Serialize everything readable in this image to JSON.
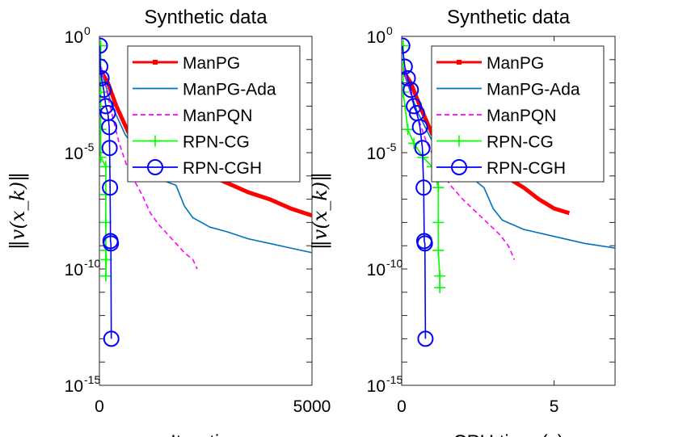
{
  "chart_data": [
    {
      "type": "line",
      "title": "Synthetic data",
      "xlabel": "Iteration",
      "ylabel": "‖v(x_k)‖",
      "xlim": [
        0,
        5000
      ],
      "ylim": [
        1e-15,
        1
      ],
      "yscale": "log",
      "xticks": [
        {
          "v": 0,
          "label": "0"
        },
        {
          "v": 5000,
          "label": "5000"
        }
      ],
      "yticks": [
        {
          "v": 0,
          "base": "10",
          "exp": "0"
        },
        {
          "v": -5,
          "base": "10",
          "exp": "-5"
        },
        {
          "v": -10,
          "base": "10",
          "exp": "-10"
        },
        {
          "v": -15,
          "base": "10",
          "exp": "-15"
        }
      ],
      "legend_position": "top-right",
      "series": [
        {
          "name": "ManPG",
          "color": "#ff0000",
          "style": "thick",
          "marker": "square",
          "points": [
            [
              40,
              -1.5
            ],
            [
              200,
              -2.0
            ],
            [
              400,
              -3.0
            ],
            [
              700,
              -4.2
            ],
            [
              1000,
              -4.6
            ],
            [
              1500,
              -5.1
            ],
            [
              2000,
              -5.5
            ],
            [
              2500,
              -5.9
            ],
            [
              3000,
              -6.3
            ],
            [
              3500,
              -6.7
            ],
            [
              4000,
              -7.0
            ],
            [
              4500,
              -7.4
            ],
            [
              5000,
              -7.7
            ]
          ]
        },
        {
          "name": "ManPG-Ada",
          "color": "#0072bd",
          "style": "solid",
          "marker": "none",
          "points": [
            [
              40,
              -1.5
            ],
            [
              300,
              -3.0
            ],
            [
              600,
              -4.2
            ],
            [
              900,
              -5.0
            ],
            [
              1200,
              -5.6
            ],
            [
              1500,
              -6.2
            ],
            [
              1800,
              -6.4
            ],
            [
              2000,
              -7.3
            ],
            [
              2200,
              -7.8
            ],
            [
              2600,
              -8.2
            ],
            [
              3000,
              -8.4
            ],
            [
              3500,
              -8.7
            ],
            [
              4000,
              -8.9
            ],
            [
              4500,
              -9.1
            ],
            [
              5000,
              -9.3
            ]
          ]
        },
        {
          "name": "ManPQN",
          "color": "#ff00ff",
          "style": "dashed",
          "marker": "none",
          "points": [
            [
              40,
              -1.3
            ],
            [
              250,
              -3.0
            ],
            [
              450,
              -4.5
            ],
            [
              650,
              -5.6
            ],
            [
              850,
              -6.3
            ],
            [
              1000,
              -6.8
            ],
            [
              1200,
              -7.6
            ],
            [
              1400,
              -8.1
            ],
            [
              1600,
              -8.5
            ],
            [
              1800,
              -8.9
            ],
            [
              2000,
              -9.3
            ],
            [
              2200,
              -9.6
            ],
            [
              2300,
              -10.0
            ]
          ]
        },
        {
          "name": "RPN-CG",
          "color": "#00ff00",
          "style": "solid",
          "marker": "plus",
          "points": [
            [
              30,
              -0.4
            ],
            [
              30,
              -2.4
            ],
            [
              30,
              -4.0
            ],
            [
              30,
              -5.2
            ],
            [
              150,
              -5.6
            ],
            [
              150,
              -6.8
            ],
            [
              150,
              -8.0
            ],
            [
              150,
              -9.2
            ],
            [
              150,
              -10.3
            ],
            [
              160,
              -9.6
            ]
          ]
        },
        {
          "name": "RPN-CGH",
          "color": "#0000ff",
          "style": "solid",
          "marker": "circle",
          "points": [
            [
              10,
              -0.4
            ],
            [
              20,
              -1.3
            ],
            [
              50,
              -1.8
            ],
            [
              100,
              -2.3
            ],
            [
              150,
              -3.0
            ],
            [
              200,
              -3.3
            ],
            [
              230,
              -3.9
            ],
            [
              240,
              -4.8
            ],
            [
              250,
              -6.5
            ],
            [
              260,
              -8.8
            ],
            [
              270,
              -8.9
            ],
            [
              280,
              -13.0
            ]
          ]
        }
      ]
    },
    {
      "type": "line",
      "title": "Synthetic data",
      "xlabel": "CPU time (s)",
      "ylabel": "‖v(x_k)‖",
      "xlim": [
        0,
        7
      ],
      "ylim": [
        1e-15,
        1
      ],
      "yscale": "log",
      "xticks": [
        {
          "v": 0,
          "label": "0"
        },
        {
          "v": 5,
          "label": "5"
        }
      ],
      "yticks": [
        {
          "v": 0,
          "base": "10",
          "exp": "0"
        },
        {
          "v": -5,
          "base": "10",
          "exp": "-5"
        },
        {
          "v": -10,
          "base": "10",
          "exp": "-10"
        },
        {
          "v": -15,
          "base": "10",
          "exp": "-15"
        }
      ],
      "legend_position": "top-right",
      "series": [
        {
          "name": "ManPG",
          "color": "#ff0000",
          "style": "thick",
          "marker": "square",
          "points": [
            [
              0.05,
              -1.5
            ],
            [
              0.3,
              -2.0
            ],
            [
              0.6,
              -3.0
            ],
            [
              1.0,
              -4.2
            ],
            [
              1.5,
              -4.8
            ],
            [
              2.0,
              -5.1
            ],
            [
              2.5,
              -5.6
            ],
            [
              3.0,
              -5.9
            ],
            [
              3.5,
              -6.1
            ],
            [
              4.0,
              -6.5
            ],
            [
              4.5,
              -7.0
            ],
            [
              5.0,
              -7.4
            ],
            [
              5.5,
              -7.6
            ]
          ]
        },
        {
          "name": "ManPG-Ada",
          "color": "#0072bd",
          "style": "solid",
          "marker": "none",
          "points": [
            [
              0.05,
              -1.5
            ],
            [
              0.5,
              -3.2
            ],
            [
              1.0,
              -4.5
            ],
            [
              1.5,
              -5.2
            ],
            [
              2.0,
              -5.7
            ],
            [
              2.5,
              -6.3
            ],
            [
              2.7,
              -6.5
            ],
            [
              3.0,
              -7.4
            ],
            [
              3.3,
              -7.9
            ],
            [
              4.0,
              -8.3
            ],
            [
              5.0,
              -8.6
            ],
            [
              6.0,
              -8.9
            ],
            [
              7.0,
              -9.1
            ]
          ]
        },
        {
          "name": "ManPQN",
          "color": "#ff00ff",
          "style": "dashed",
          "marker": "none",
          "points": [
            [
              0.05,
              -1.3
            ],
            [
              0.4,
              -3.0
            ],
            [
              0.8,
              -4.5
            ],
            [
              1.2,
              -5.6
            ],
            [
              1.6,
              -6.4
            ],
            [
              2.0,
              -7.0
            ],
            [
              2.4,
              -7.5
            ],
            [
              2.8,
              -8.0
            ],
            [
              3.2,
              -8.5
            ],
            [
              3.5,
              -9.0
            ],
            [
              3.7,
              -9.6
            ]
          ]
        },
        {
          "name": "RPN-CG",
          "color": "#00ff00",
          "style": "solid",
          "marker": "plus",
          "points": [
            [
              0.05,
              -0.4
            ],
            [
              0.05,
              -2.4
            ],
            [
              0.2,
              -4.0
            ],
            [
              0.4,
              -4.6
            ],
            [
              0.7,
              -5.2
            ],
            [
              1.0,
              -5.6
            ],
            [
              1.2,
              -6.5
            ],
            [
              1.2,
              -8.0
            ],
            [
              1.2,
              -9.2
            ],
            [
              1.25,
              -10.3
            ],
            [
              1.25,
              -10.8
            ]
          ]
        },
        {
          "name": "RPN-CGH",
          "color": "#0000ff",
          "style": "solid",
          "marker": "circle",
          "points": [
            [
              0.02,
              -0.4
            ],
            [
              0.1,
              -1.3
            ],
            [
              0.2,
              -1.8
            ],
            [
              0.3,
              -2.3
            ],
            [
              0.4,
              -3.0
            ],
            [
              0.5,
              -3.3
            ],
            [
              0.6,
              -3.9
            ],
            [
              0.68,
              -4.8
            ],
            [
              0.72,
              -6.5
            ],
            [
              0.74,
              -8.8
            ],
            [
              0.76,
              -8.9
            ],
            [
              0.78,
              -13.0
            ]
          ]
        }
      ]
    }
  ]
}
